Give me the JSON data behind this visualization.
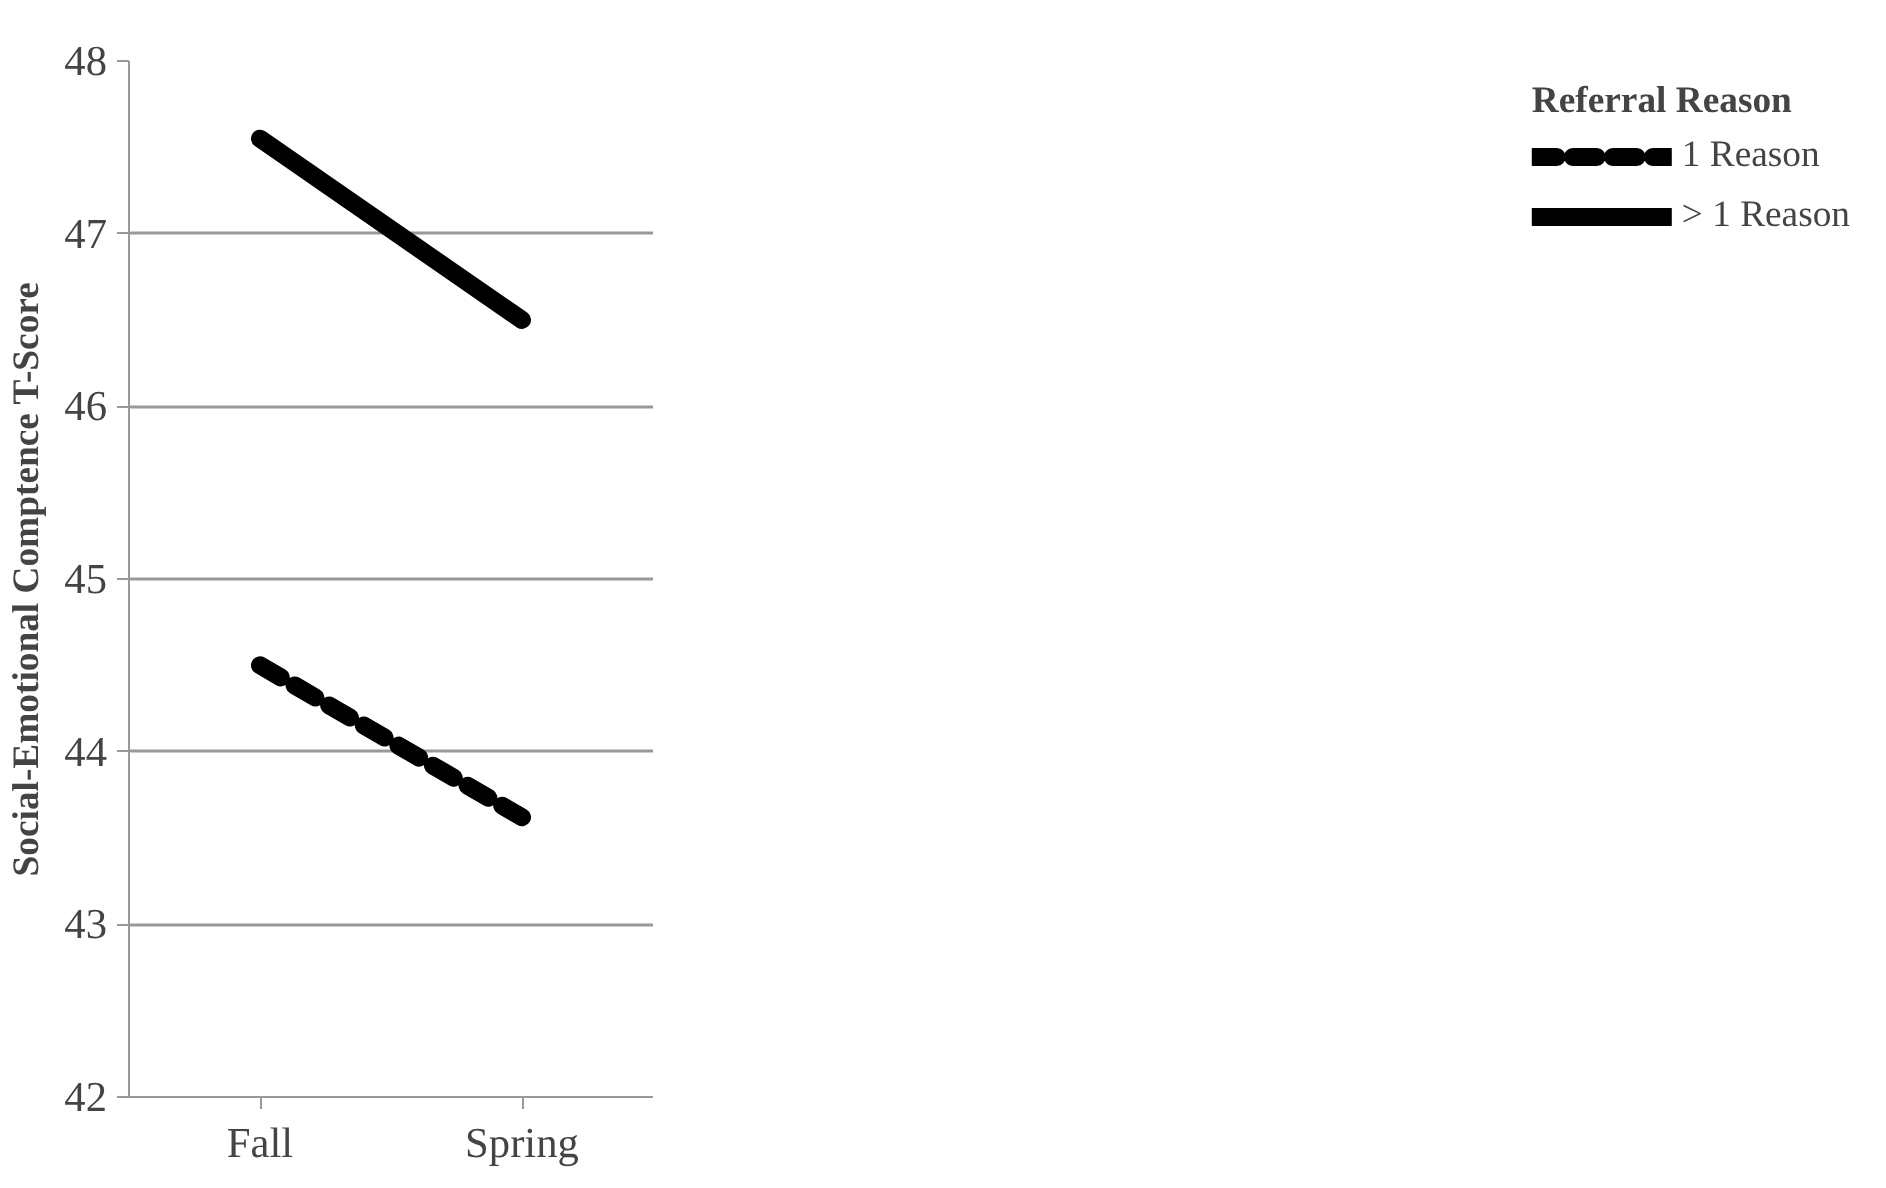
{
  "chart_data": {
    "type": "line",
    "ylabel": "Social-Emotional Comptence T-Score",
    "legend_title": "Referral Reason",
    "categories": [
      "Fall",
      "Spring"
    ],
    "series": [
      {
        "name": "1 Reason",
        "color": "#000000",
        "values": [
          44.5,
          43.62
        ],
        "line_style": "dashed"
      },
      {
        "name": "> 1 Reason",
        "color": "#000000",
        "values": [
          47.55,
          46.5
        ],
        "line_style": "solid"
      }
    ],
    "ylim": [
      42,
      48
    ],
    "yticks": [
      42,
      43,
      44,
      45,
      46,
      47,
      48
    ],
    "grid": "y",
    "legend": "right"
  }
}
